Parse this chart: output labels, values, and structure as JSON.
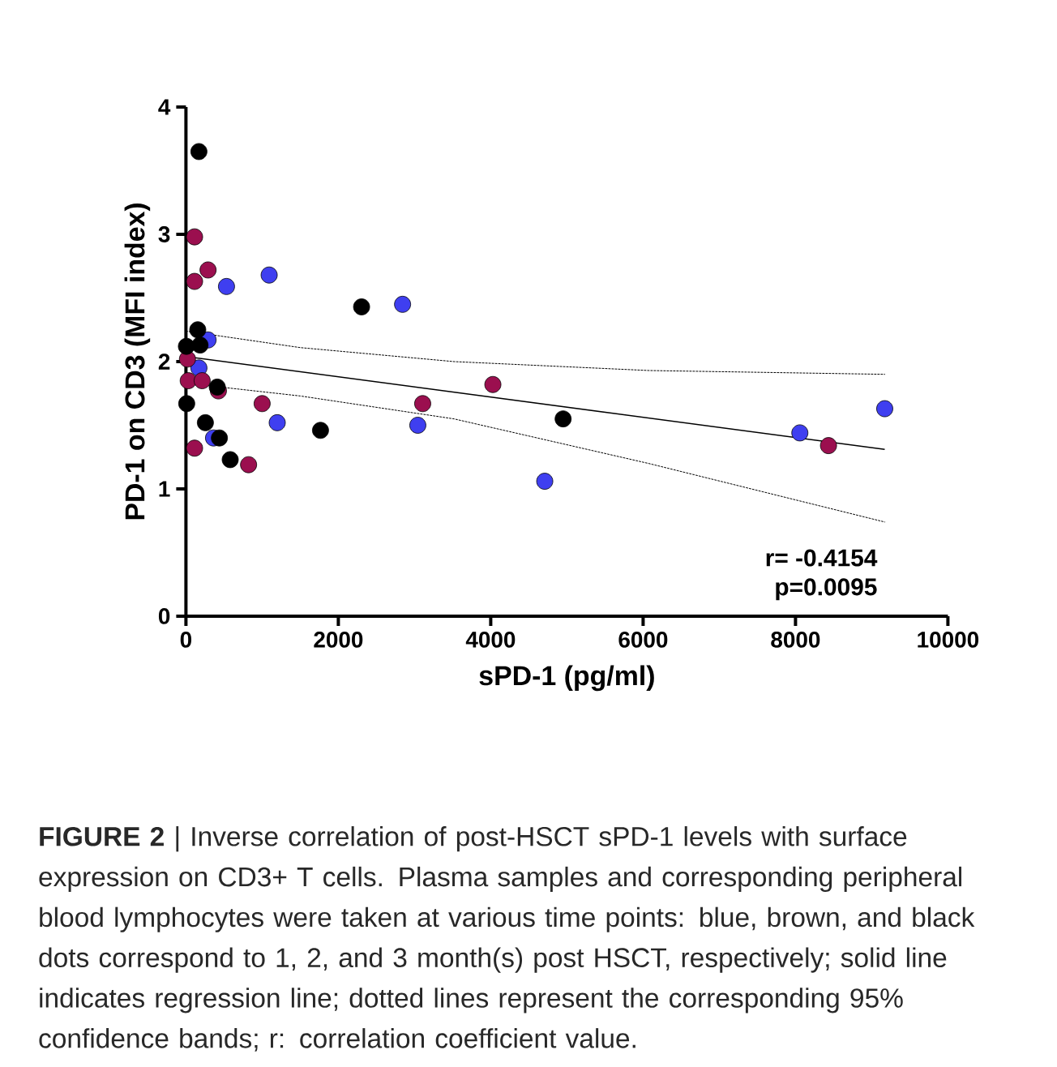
{
  "chart_data": {
    "type": "scatter",
    "xlabel": "sPD-1 (pg/ml)",
    "ylabel": "PD-1 on CD3 (MFI index)",
    "xlim": [
      0,
      10000
    ],
    "xticks": [
      0,
      2000,
      4000,
      6000,
      8000,
      10000
    ],
    "ylim": [
      0,
      4
    ],
    "yticks": [
      0,
      1,
      2,
      3,
      4
    ],
    "grid": false,
    "series": [
      {
        "color": "#3f3ff0",
        "marker": "circle",
        "x": [
          532,
          1092,
          2843,
          290,
          170,
          1198,
          3043,
          362,
          4709,
          8057,
          9171
        ],
        "values": [
          2.59,
          2.68,
          2.45,
          2.17,
          1.95,
          1.52,
          1.5,
          1.4,
          1.06,
          1.44,
          1.63
        ]
      },
      {
        "color": "#9b0f4f",
        "marker": "circle",
        "x": [
          113,
          113,
          290,
          20,
          30,
          213,
          426,
          1000,
          113,
          822,
          3107,
          4028,
          8433
        ],
        "values": [
          2.98,
          2.63,
          2.72,
          2.02,
          1.85,
          1.85,
          1.77,
          1.67,
          1.32,
          1.19,
          1.67,
          1.82,
          1.34
        ]
      },
      {
        "color": "#000000",
        "marker": "circle",
        "x": [
          170,
          155,
          6,
          185,
          411,
          10,
          255,
          439,
          581,
          1766,
          2305,
          4950
        ],
        "values": [
          3.65,
          2.25,
          2.12,
          2.13,
          1.8,
          1.67,
          1.52,
          1.4,
          1.23,
          1.46,
          2.43,
          1.55
        ]
      },
      {
        "type": "line",
        "color": "#000000",
        "marker": "none",
        "line_style": "solid",
        "x": [
          0,
          9171
        ],
        "values": [
          2.04,
          1.31
        ]
      },
      {
        "type": "line",
        "color": "#000000",
        "marker": "none",
        "line_style": "dotted",
        "x": [
          0,
          1500,
          3518,
          6071,
          9171
        ],
        "values": [
          2.24,
          2.11,
          2.0,
          1.93,
          1.9
        ]
      },
      {
        "type": "line",
        "color": "#000000",
        "marker": "none",
        "line_style": "dotted",
        "x": [
          0,
          1500,
          3518,
          6071,
          9171
        ],
        "values": [
          1.83,
          1.73,
          1.55,
          1.2,
          0.74
        ]
      }
    ],
    "annotations": [
      "r= -0.4154",
      "p=0.0095",
      "**FIGURE 2** | Inverse correlation of post-HSCT sPD-1 levels with surface expression on CD3+ T cells. Plasma samples and corresponding peripheral blood lymphocytes were taken at various time points: blue, brown, and black dots correspond to 1, 2, and 3 month(s) post HSCT, respectively; solid line indicates regression line; dotted lines represent the corresponding 95% confidence bands; r: correlation coefficient value."
    ]
  }
}
